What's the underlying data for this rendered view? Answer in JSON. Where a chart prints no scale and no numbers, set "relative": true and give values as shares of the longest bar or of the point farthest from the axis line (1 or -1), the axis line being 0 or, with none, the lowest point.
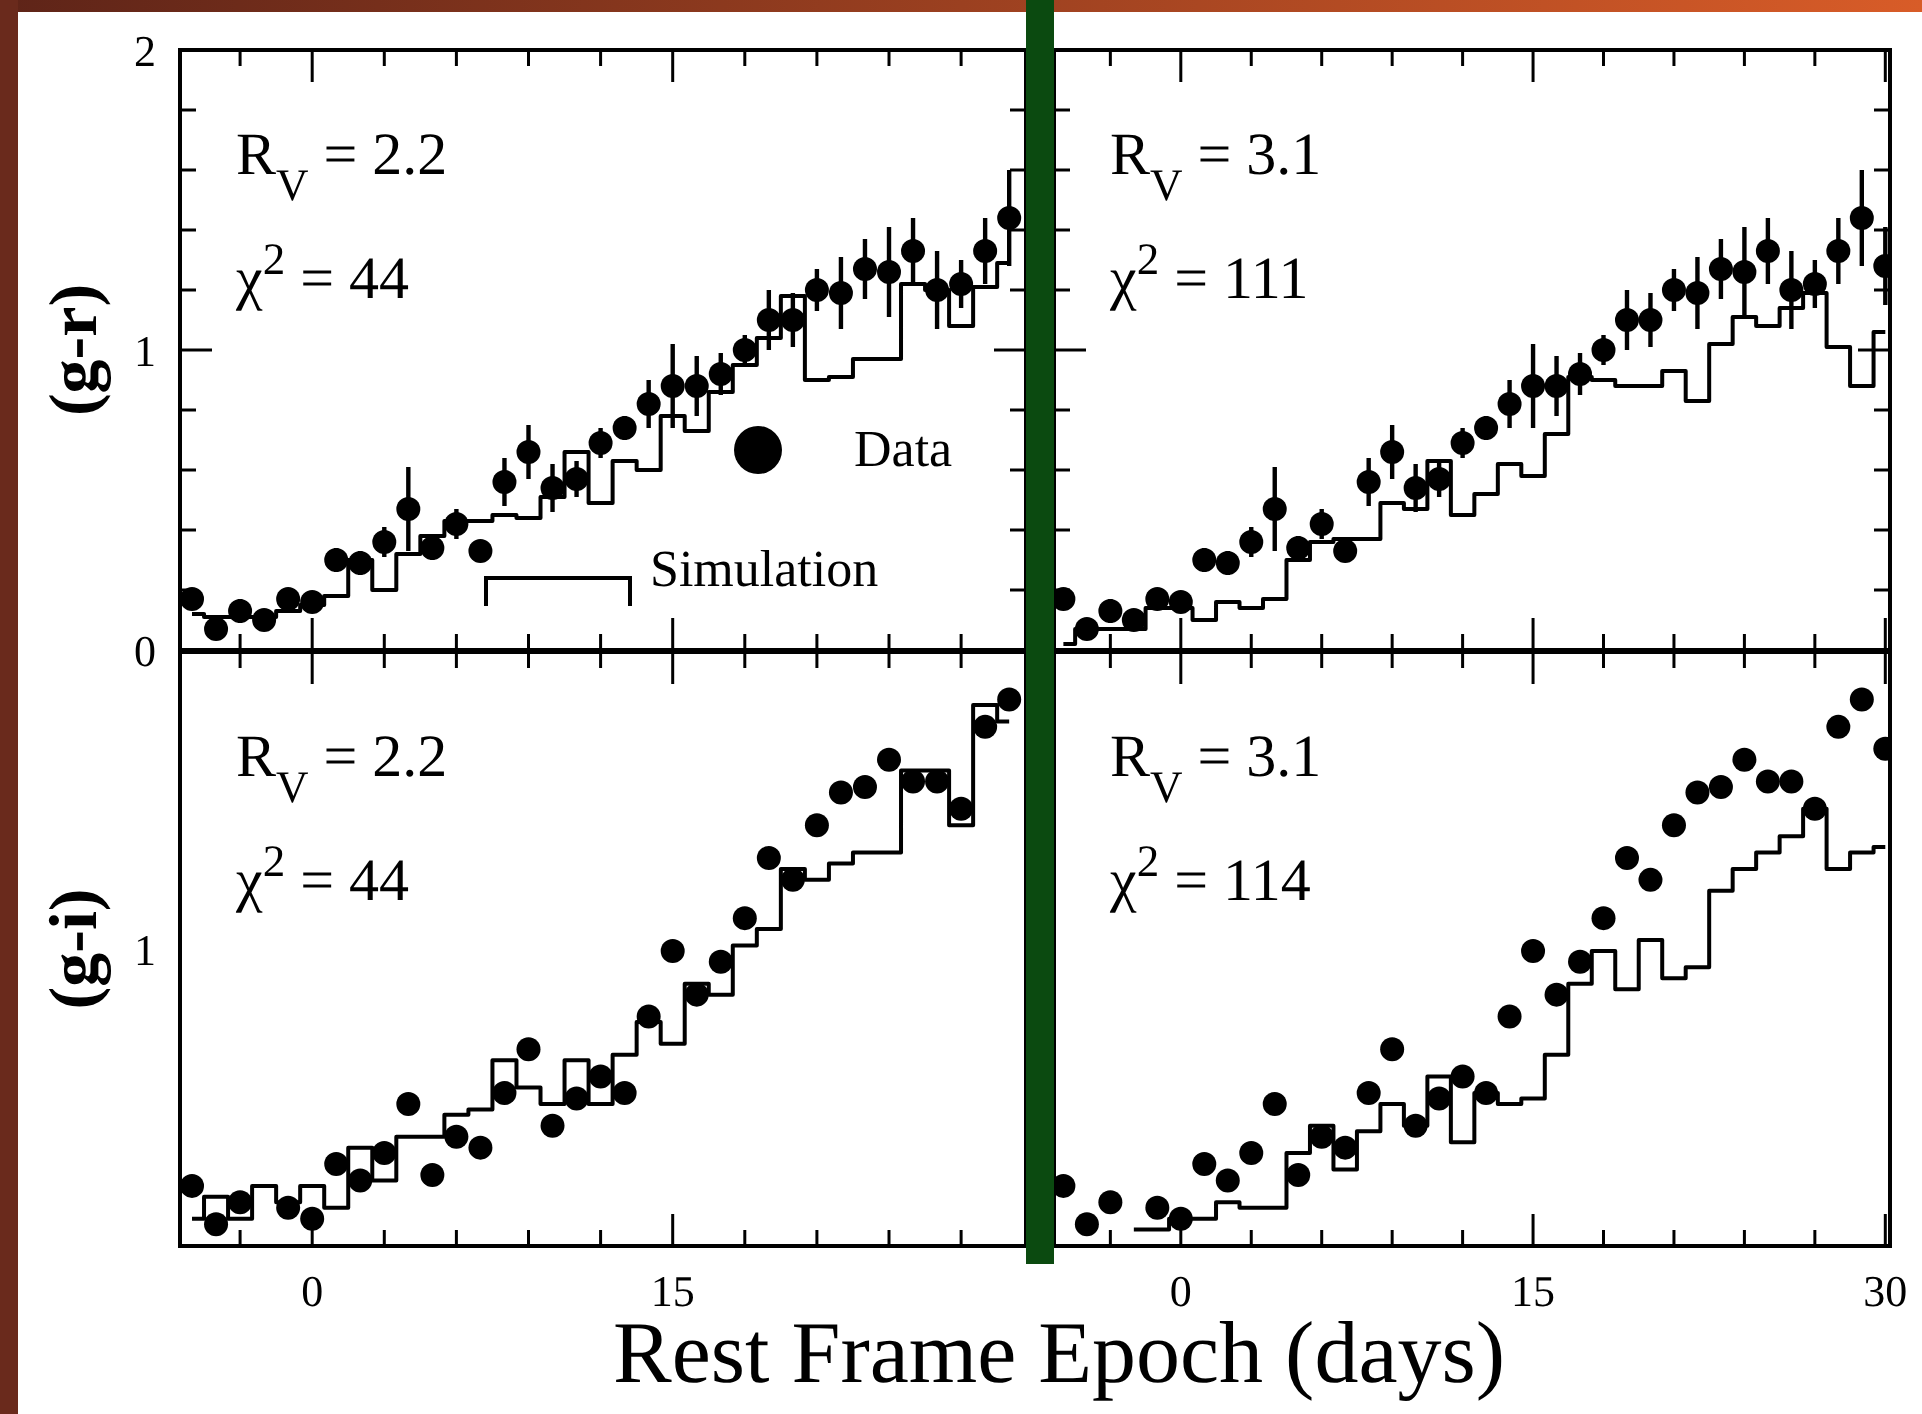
{
  "chart_data": [
    {
      "type": "scatter",
      "ylabel": "(g-r)",
      "x": [
        -5,
        -4,
        -3,
        -2,
        -1,
        0,
        1,
        2,
        3,
        4,
        5,
        6,
        7,
        8,
        9,
        10,
        11,
        12,
        13,
        14,
        15,
        16,
        17,
        18,
        19,
        20,
        21,
        22,
        23,
        24,
        25,
        26,
        27,
        28,
        29
      ],
      "xlim": [
        -5.5,
        29.7
      ],
      "xticks": [
        {
          "value": -3,
          "label": null
        },
        0,
        {
          "value": 3,
          "label": null
        },
        {
          "value": 6,
          "label": null
        },
        {
          "value": 9,
          "label": null
        },
        {
          "value": 12,
          "label": null
        },
        15,
        {
          "value": 18,
          "label": null
        },
        {
          "value": 21,
          "label": null
        },
        {
          "value": 24,
          "label": null
        },
        {
          "value": 27,
          "label": null
        }
      ],
      "ylim": [
        0,
        2
      ],
      "yticks": [
        0,
        {
          "value": 0.2,
          "label": null
        },
        {
          "value": 0.4,
          "label": null
        },
        {
          "value": 0.6,
          "label": null
        },
        {
          "value": 0.8,
          "label": null
        },
        1,
        {
          "value": 1.2,
          "label": null
        },
        {
          "value": 1.4,
          "label": null
        },
        {
          "value": 1.6,
          "label": null
        },
        {
          "value": 1.8,
          "label": null
        },
        2
      ],
      "tick_labels": "y",
      "legend": "bottom right",
      "annotations": [
        "R$_{V}$ = 2.2",
        "χ$^{2}$ = 44"
      ],
      "series": [
        {
          "name": "Data",
          "marker": "circle",
          "color": "#000000",
          "values": [
            0.17,
            0.07,
            0.13,
            0.1,
            0.17,
            0.16,
            0.3,
            0.29,
            0.36,
            0.47,
            0.34,
            0.42,
            0.33,
            0.56,
            0.66,
            0.54,
            0.57,
            0.69,
            0.74,
            0.82,
            0.88,
            0.88,
            0.92,
            1.0,
            1.1,
            1.1,
            1.2,
            1.19,
            1.27,
            1.26,
            1.33,
            1.2,
            1.22,
            1.33,
            1.44
          ],
          "errors": [
            0.03,
            0.03,
            0.04,
            0.03,
            0.03,
            0.03,
            0.04,
            0.04,
            0.05,
            0.14,
            0.04,
            0.05,
            0.03,
            0.08,
            0.09,
            0.08,
            0.06,
            0.05,
            0.04,
            0.08,
            0.14,
            0.1,
            0.07,
            0.05,
            0.1,
            0.09,
            0.07,
            0.12,
            0.1,
            0.15,
            0.11,
            0.13,
            0.08,
            0.11,
            0.16
          ]
        },
        {
          "name": "Simulation",
          "type": "step",
          "marker": "none",
          "color": "#000000",
          "values": [
            0.12,
            0.11,
            0.11,
            0.11,
            0.13,
            0.15,
            0.18,
            0.3,
            0.2,
            0.32,
            0.38,
            0.43,
            0.43,
            0.45,
            0.44,
            0.51,
            0.66,
            0.49,
            0.63,
            0.6,
            0.78,
            0.73,
            0.86,
            0.95,
            1.04,
            1.18,
            0.9,
            0.91,
            0.97,
            0.97,
            1.22,
            1.2,
            1.08,
            1.21,
            1.29
          ]
        }
      ]
    },
    {
      "type": "scatter",
      "x": [
        -5,
        -4,
        -3,
        -2,
        -1,
        0,
        1,
        2,
        3,
        4,
        5,
        6,
        7,
        8,
        9,
        10,
        11,
        12,
        13,
        14,
        15,
        16,
        17,
        18,
        19,
        20,
        21,
        22,
        23,
        24,
        25,
        26,
        27,
        28,
        29,
        30
      ],
      "xlim": [
        -5.4,
        30.2
      ],
      "xticks": [
        {
          "value": -3,
          "label": null
        },
        0,
        {
          "value": 3,
          "label": null
        },
        {
          "value": 6,
          "label": null
        },
        {
          "value": 9,
          "label": null
        },
        {
          "value": 12,
          "label": null
        },
        15,
        {
          "value": 18,
          "label": null
        },
        {
          "value": 21,
          "label": null
        },
        {
          "value": 24,
          "label": null
        },
        {
          "value": 27,
          "label": null
        },
        30
      ],
      "ylim": [
        0,
        2
      ],
      "yticks": [
        0,
        {
          "value": 0.2,
          "label": null
        },
        {
          "value": 0.4,
          "label": null
        },
        {
          "value": 0.6,
          "label": null
        },
        {
          "value": 0.8,
          "label": null
        },
        1,
        {
          "value": 1.2,
          "label": null
        },
        {
          "value": 1.4,
          "label": null
        },
        {
          "value": 1.6,
          "label": null
        },
        {
          "value": 1.8,
          "label": null
        },
        2
      ],
      "tick_labels": false,
      "annotations": [
        "R$_{V}$ = 3.1",
        "χ$^{2}$ = 111"
      ],
      "series": [
        {
          "marker": "circle",
          "color": "#000000",
          "values": [
            0.17,
            0.07,
            0.13,
            0.1,
            0.17,
            0.16,
            0.3,
            0.29,
            0.36,
            0.47,
            0.34,
            0.42,
            0.33,
            0.56,
            0.66,
            0.54,
            0.57,
            0.69,
            0.74,
            0.82,
            0.88,
            0.88,
            0.92,
            1.0,
            1.1,
            1.1,
            1.2,
            1.19,
            1.27,
            1.26,
            1.33,
            1.2,
            1.22,
            1.33,
            1.44,
            1.28
          ],
          "errors": [
            0.03,
            0.03,
            0.04,
            0.03,
            0.03,
            0.03,
            0.04,
            0.04,
            0.05,
            0.14,
            0.04,
            0.05,
            0.03,
            0.08,
            0.09,
            0.08,
            0.06,
            0.05,
            0.04,
            0.08,
            0.14,
            0.1,
            0.07,
            0.05,
            0.1,
            0.09,
            0.07,
            0.12,
            0.1,
            0.15,
            0.11,
            0.13,
            0.08,
            0.11,
            0.16,
            0.13
          ]
        },
        {
          "type": "step",
          "marker": "none",
          "color": "#000000",
          "values": [
            0.02,
            0.07,
            0.07,
            0.07,
            0.14,
            0.14,
            0.1,
            0.16,
            0.14,
            0.17,
            0.3,
            0.36,
            0.37,
            0.37,
            0.49,
            0.47,
            0.63,
            0.45,
            0.52,
            0.62,
            0.58,
            0.72,
            0.91,
            0.9,
            0.88,
            0.88,
            0.93,
            0.83,
            1.02,
            1.11,
            1.08,
            1.14,
            1.19,
            1.01,
            0.88,
            1.06
          ]
        }
      ]
    },
    {
      "type": "scatter",
      "relative": true,
      "ylabel": "(g-i)",
      "xlabel": "Rest Frame Epoch (days)",
      "x": [
        -5,
        -4,
        -3,
        -2,
        -1,
        0,
        1,
        2,
        3,
        4,
        5,
        6,
        7,
        8,
        9,
        10,
        11,
        12,
        13,
        14,
        15,
        16,
        17,
        18,
        19,
        20,
        21,
        22,
        23,
        24,
        25,
        26,
        27,
        28,
        29
      ],
      "xlim": [
        -5.5,
        29.7
      ],
      "xticks": [
        {
          "value": -3,
          "label": null
        },
        0,
        {
          "value": 3,
          "label": null
        },
        {
          "value": 6,
          "label": null
        },
        {
          "value": 9,
          "label": null
        },
        {
          "value": 12,
          "label": null
        },
        15,
        {
          "value": 18,
          "label": null
        },
        {
          "value": 21,
          "label": null
        },
        {
          "value": 24,
          "label": null
        },
        {
          "value": 27,
          "label": null
        }
      ],
      "annotations": [
        "R$_{V}$ = 2.2",
        "χ$^{2}$ = 44",
        "1"
      ],
      "series": [
        {
          "marker": "circle",
          "color": "#000000",
          "values": [
            0.11,
            0.04,
            0.08,
            null,
            0.07,
            0.05,
            0.15,
            0.12,
            0.17,
            0.26,
            0.13,
            0.2,
            0.18,
            0.28,
            0.36,
            0.22,
            0.27,
            0.31,
            0.28,
            0.42,
            0.54,
            0.46,
            0.52,
            0.6,
            0.71,
            0.67,
            0.77,
            0.83,
            0.84,
            0.89,
            0.85,
            0.85,
            0.8,
            0.95,
            1
          ]
        },
        {
          "type": "step",
          "marker": "none",
          "color": "#000000",
          "values": [
            0.05,
            0.09,
            0.05,
            0.11,
            0.08,
            0.11,
            0.07,
            0.18,
            0.12,
            0.2,
            0.2,
            0.24,
            0.25,
            0.34,
            0.29,
            0.26,
            0.34,
            0.26,
            0.35,
            0.41,
            0.37,
            0.48,
            0.46,
            0.55,
            0.58,
            0.69,
            0.67,
            0.7,
            0.72,
            0.72,
            0.87,
            0.87,
            0.77,
            0.99,
            0.96
          ]
        }
      ]
    },
    {
      "type": "scatter",
      "relative": true,
      "x": [
        -5,
        -4,
        -3,
        -2,
        -1,
        0,
        1,
        2,
        3,
        4,
        5,
        6,
        7,
        8,
        9,
        10,
        11,
        12,
        13,
        14,
        15,
        16,
        17,
        18,
        19,
        20,
        21,
        22,
        23,
        24,
        25,
        26,
        27,
        28,
        29,
        30
      ],
      "xlim": [
        -5.4,
        30.2
      ],
      "xticks": [
        {
          "value": -3,
          "label": null
        },
        0,
        {
          "value": 3,
          "label": null
        },
        {
          "value": 6,
          "label": null
        },
        {
          "value": 9,
          "label": null
        },
        {
          "value": 12,
          "label": null
        },
        15,
        {
          "value": 18,
          "label": null
        },
        {
          "value": 21,
          "label": null
        },
        {
          "value": 24,
          "label": null
        },
        {
          "value": 27,
          "label": null
        },
        30
      ],
      "tick_labels": "x",
      "annotations": [
        "R$_{V}$ = 3.1",
        "χ$^{2}$ = 114"
      ],
      "series": [
        {
          "marker": "circle",
          "color": "#000000",
          "values": [
            0.11,
            0.04,
            0.08,
            null,
            0.07,
            0.05,
            0.15,
            0.12,
            0.17,
            0.26,
            0.13,
            0.2,
            0.18,
            0.28,
            0.36,
            0.22,
            0.27,
            0.31,
            0.28,
            0.42,
            0.54,
            0.46,
            0.52,
            0.6,
            0.71,
            0.67,
            0.77,
            0.83,
            0.84,
            0.89,
            0.85,
            0.85,
            0.8,
            0.95,
            1,
            0.91
          ]
        },
        {
          "type": "step",
          "marker": "none",
          "color": "#000000",
          "values": [
            null,
            null,
            null,
            0.03,
            0.03,
            0.05,
            0.05,
            0.08,
            0.07,
            0.07,
            0.17,
            0.22,
            0.14,
            0.21,
            0.26,
            0.22,
            0.31,
            0.19,
            0.28,
            0.26,
            0.27,
            0.35,
            0.48,
            0.54,
            0.47,
            0.56,
            0.49,
            0.51,
            0.65,
            0.69,
            0.72,
            0.75,
            0.8,
            0.69,
            0.72,
            0.73
          ]
        }
      ]
    }
  ]
}
